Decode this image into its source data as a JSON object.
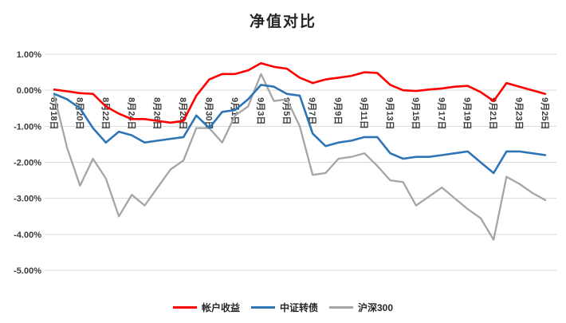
{
  "chart_data": {
    "type": "line",
    "title": "净值对比",
    "x": [
      "8月18日",
      "8月19日",
      "8月20日",
      "8月21日",
      "8月22日",
      "8月23日",
      "8月24日",
      "8月25日",
      "8月26日",
      "8月27日",
      "8月28日",
      "8月29日",
      "8月30日",
      "8月31日",
      "9月1日",
      "9月2日",
      "9月3日",
      "9月4日",
      "9月5日",
      "9月6日",
      "9月7日",
      "9月8日",
      "9月9日",
      "9月10日",
      "9月11日",
      "9月12日",
      "9月13日",
      "9月14日",
      "9月15日",
      "9月16日",
      "9月17日",
      "9月18日",
      "9月19日",
      "9月20日",
      "9月21日",
      "9月22日",
      "9月23日",
      "9月24日",
      "9月25日"
    ],
    "x_tick_step": 2,
    "x_tick_labels": [
      "8月18日",
      "8月20日",
      "8月22日",
      "8月24日",
      "8月26日",
      "8月28日",
      "8月30日",
      "9月1日",
      "9月3日",
      "9月5日",
      "9月7日",
      "9月9日",
      "9月11日",
      "9月13日",
      "9月15日",
      "9月17日",
      "9月19日",
      "9月21日",
      "9月23日",
      "9月25日"
    ],
    "series": [
      {
        "id": "account-return",
        "name": "帐户收益",
        "color": "#FF0000",
        "width": 2.6,
        "values": [
          0.02,
          -0.03,
          -0.08,
          -0.1,
          -0.45,
          -0.65,
          -0.8,
          -0.8,
          -0.85,
          -0.9,
          -0.85,
          -0.15,
          0.3,
          0.45,
          0.45,
          0.55,
          0.75,
          0.65,
          0.6,
          0.35,
          0.2,
          0.3,
          0.35,
          0.4,
          0.5,
          0.48,
          0.15,
          0.0,
          -0.02,
          0.02,
          0.05,
          0.1,
          0.12,
          -0.05,
          -0.3,
          0.2,
          0.1,
          0.0,
          -0.1
        ]
      },
      {
        "id": "csi-convertible-bonds",
        "name": "中证转债",
        "color": "#2E75B6",
        "width": 2.6,
        "values": [
          -0.1,
          -0.25,
          -0.5,
          -1.05,
          -1.45,
          -1.15,
          -1.25,
          -1.45,
          -1.4,
          -1.35,
          -1.3,
          -0.7,
          -1.05,
          -0.6,
          -0.55,
          -0.25,
          0.15,
          0.1,
          -0.1,
          -0.15,
          -1.2,
          -1.55,
          -1.45,
          -1.4,
          -1.3,
          -1.3,
          -1.75,
          -1.9,
          -1.85,
          -1.85,
          -1.8,
          -1.75,
          -1.7,
          -2.0,
          -2.3,
          -1.7,
          -1.7,
          -1.75,
          -1.8
        ]
      },
      {
        "id": "hs300",
        "name": "沪深300",
        "color": "#A5A5A5",
        "width": 2.3,
        "values": [
          -0.15,
          -1.6,
          -2.65,
          -1.9,
          -2.45,
          -3.5,
          -2.9,
          -3.2,
          -2.7,
          -2.2,
          -1.95,
          -1.05,
          -1.05,
          -1.45,
          -0.7,
          -0.45,
          0.45,
          -0.3,
          -0.25,
          -1.0,
          -2.35,
          -2.3,
          -1.9,
          -1.85,
          -1.75,
          -2.1,
          -2.5,
          -2.55,
          -3.2,
          -2.95,
          -2.7,
          -3.0,
          -3.3,
          -3.55,
          -4.15,
          -2.4,
          -2.6,
          -2.85,
          -3.05
        ]
      }
    ],
    "ylim": [
      -5.0,
      1.0
    ],
    "y_ticks": [
      "1.00%",
      "0.00%",
      "-1.00%",
      "-2.00%",
      "-3.00%",
      "-4.00%",
      "-5.00%"
    ],
    "y_tick_values": [
      1,
      0,
      -1,
      -2,
      -3,
      -4,
      -5
    ],
    "grid": true,
    "grid_color": "#D9D9D9",
    "background": "#FFFFFF",
    "legend_position": "bottom"
  }
}
